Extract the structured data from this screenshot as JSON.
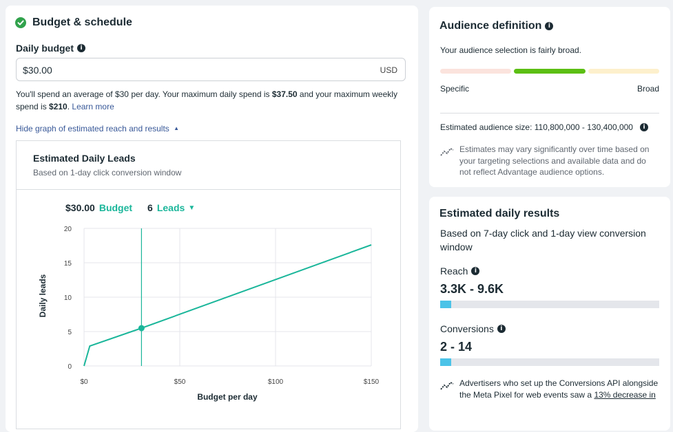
{
  "budget_section": {
    "title": "Budget & schedule",
    "daily_budget_label": "Daily budget",
    "budget_value": "$30.00",
    "currency": "USD",
    "description_part1": "You'll spend an average of $30 per day. Your maximum daily spend is ",
    "max_daily": "$37.50",
    "description_part2": " and your maximum weekly spend is ",
    "max_weekly": "$210",
    "description_part3": ". ",
    "learn_more": "Learn more",
    "hide_graph_link": "Hide graph of estimated reach and results"
  },
  "graph": {
    "title": "Estimated Daily Leads",
    "subtitle": "Based on 1-day click conversion window",
    "legend_budget_value": "$30.00",
    "legend_budget_label": "Budget",
    "legend_leads_value": "6",
    "legend_leads_label": "Leads"
  },
  "chart_data": {
    "type": "line",
    "x": [
      0,
      3,
      30,
      150
    ],
    "values": [
      0,
      2.9,
      5.5,
      17.6
    ],
    "xlabel": "Budget per day",
    "ylabel": "Daily leads",
    "xlim": [
      0,
      150
    ],
    "ylim": [
      0,
      20
    ],
    "x_ticks": [
      0,
      50,
      100,
      150
    ],
    "x_tick_labels": [
      "$0",
      "$50",
      "$100",
      "$150"
    ],
    "y_ticks": [
      0,
      5,
      10,
      15,
      20
    ],
    "y_tick_labels": [
      "0",
      "5",
      "10",
      "15",
      "20"
    ],
    "marker": {
      "x": 30,
      "y": 5.5
    },
    "grid": true,
    "color": "#1ab69a"
  },
  "audience": {
    "title": "Audience definition",
    "description": "Your audience selection is fairly broad.",
    "specific_label": "Specific",
    "broad_label": "Broad",
    "size_text": "Estimated audience size: 110,800,000 - 130,400,000",
    "note": "Estimates may vary significantly over time based on your targeting selections and available data and do not reflect Advantage audience options.",
    "segment_colors": [
      "#fbe3dd",
      "#5cbf14",
      "#fdf0cc"
    ]
  },
  "results": {
    "title": "Estimated daily results",
    "subtitle": "Based on 7-day click and 1-day view conversion window",
    "reach_label": "Reach",
    "reach_value": "3.3K - 9.6K",
    "reach_fill": 0.05,
    "conversions_label": "Conversions",
    "conversions_value": "2 - 14",
    "conversions_fill": 0.05,
    "note_part1": "Advertisers who set up the Conversions API alongside the Meta Pixel for web events saw a ",
    "note_link": "13% decrease in"
  }
}
